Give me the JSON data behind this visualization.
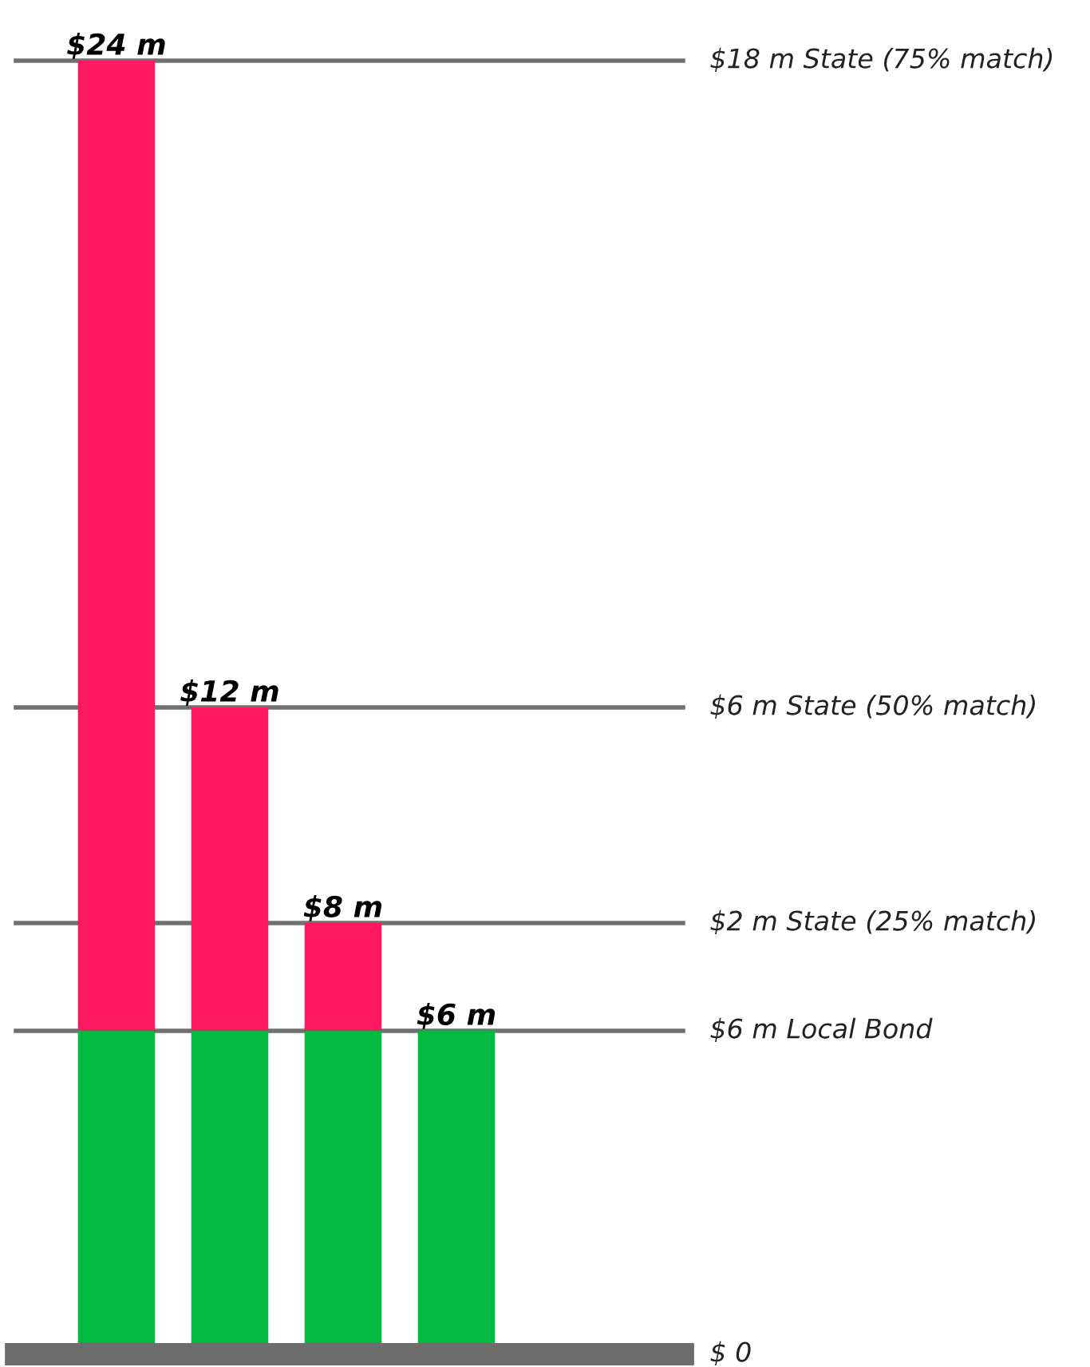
{
  "chart_data": {
    "type": "bar",
    "stacked": true,
    "categories": [
      null,
      null,
      null,
      null
    ],
    "series": [
      {
        "color": "#00bb3f",
        "values": [
          6,
          6,
          6,
          6
        ]
      },
      {
        "color": "#fe1862",
        "values": [
          18,
          6,
          2,
          null
        ]
      }
    ],
    "totals": [
      "$24 m",
      "$12 m",
      "$8 m",
      "$6 m"
    ],
    "ylim": [
      0,
      24
    ],
    "tick_labels": false,
    "legend": false,
    "ref_lines": [
      {
        "axis": "y",
        "value": 24,
        "label": "$18 m State (75% match)",
        "color": "#707070"
      },
      {
        "axis": "y",
        "value": 12,
        "label": "$6 m State (50% match)",
        "color": "#707070"
      },
      {
        "axis": "y",
        "value": 8,
        "label": "$2 m State (25% match)",
        "color": "#707070"
      },
      {
        "axis": "y",
        "value": 6,
        "label": "$6 m Local Bond",
        "color": "#707070"
      },
      {
        "axis": "y",
        "value": 0,
        "label": "$ 0",
        "color": "#6d6d6d"
      }
    ]
  }
}
